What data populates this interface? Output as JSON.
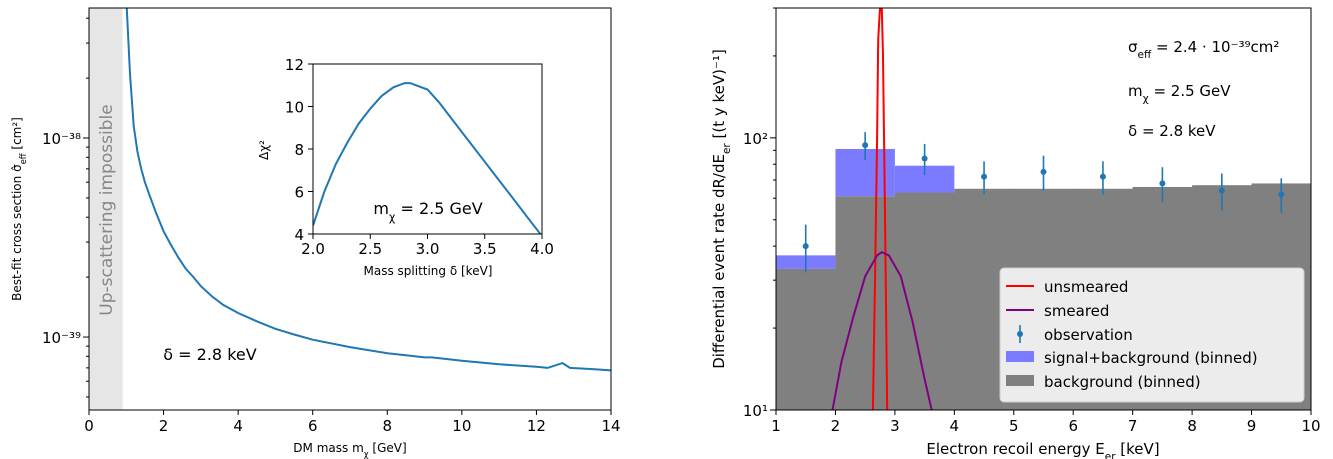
{
  "chart_data": [
    {
      "type": "line",
      "xlabel": "DM mass m_χ [GeV]",
      "ylabel": "Best-fit cross section σ̂_eff [cm²]",
      "xlim": [
        0,
        14
      ],
      "ylim": [
        4.3e-40,
        4.5e-38
      ],
      "yscale": "log",
      "xticks": [
        0,
        2,
        4,
        6,
        8,
        10,
        12,
        14
      ],
      "yticks": [
        {
          "v": 1e-38,
          "label": "10⁻³⁸"
        },
        {
          "v": 1e-39,
          "label": "10⁻³⁹"
        }
      ],
      "shaded_region": {
        "x": [
          0,
          0.9
        ],
        "color": "#e6e6e6",
        "label": "Up-scattering impossible"
      },
      "annotation": "δ = 2.8 keV",
      "series": [
        {
          "color": "#1f77b4",
          "x": [
            1.0,
            1.1,
            1.2,
            1.3,
            1.4,
            1.5,
            1.6,
            1.8,
            2.0,
            2.2,
            2.4,
            2.6,
            2.8,
            3.0,
            3.3,
            3.6,
            4.0,
            4.5,
            5.0,
            5.5,
            6.0,
            7.0,
            8.0,
            8.5,
            9.0,
            9.2,
            10.0,
            11.0,
            12.0,
            12.3,
            12.7,
            12.9,
            13.5,
            14.0
          ],
          "y": [
            5e-38,
            2.1e-38,
            1.15e-38,
            8.5e-39,
            7e-39,
            6e-39,
            5.3e-39,
            4.2e-39,
            3.4e-39,
            2.9e-39,
            2.5e-39,
            2.2e-39,
            2e-39,
            1.8e-39,
            1.6e-39,
            1.45e-39,
            1.32e-39,
            1.2e-39,
            1.1e-39,
            1.03e-39,
            9.7e-40,
            8.9e-40,
            8.3e-40,
            8.1e-40,
            7.9e-40,
            7.9e-40,
            7.6e-40,
            7.3e-40,
            7.1e-40,
            7e-40,
            7.4e-40,
            7e-40,
            6.9e-40,
            6.8e-40
          ]
        }
      ]
    },
    {
      "type": "line",
      "role": "inset",
      "xlabel": "Mass splitting δ [keV]",
      "ylabel": "Δχ²",
      "xlim": [
        2.0,
        4.0
      ],
      "ylim": [
        4,
        12
      ],
      "xticks": [
        "2.0",
        "2.5",
        "3.0",
        "3.5",
        "4.0"
      ],
      "yticks": [
        "4",
        "6",
        "8",
        "10",
        "12"
      ],
      "annotation": "m_χ = 2.5 GeV",
      "series": [
        {
          "color": "#1f77b4",
          "x": [
            2.0,
            2.1,
            2.2,
            2.3,
            2.4,
            2.5,
            2.6,
            2.7,
            2.8,
            2.85,
            2.9,
            3.0,
            3.1,
            3.2,
            3.3,
            3.4,
            3.5,
            3.6,
            3.7,
            3.8,
            3.9,
            4.0
          ],
          "y": [
            4.4,
            6.0,
            7.3,
            8.3,
            9.2,
            9.9,
            10.5,
            10.9,
            11.1,
            11.1,
            11.0,
            10.8,
            10.2,
            9.5,
            8.8,
            8.1,
            7.4,
            6.7,
            6.0,
            5.3,
            4.6,
            3.9
          ]
        }
      ]
    },
    {
      "type": "bar",
      "xlabel": "Electron recoil energy E_er [keV]",
      "ylabel": "Differential event rate dR/dE_er [(t y keV)⁻¹]",
      "xlim": [
        1,
        10
      ],
      "ylim": [
        10,
        300
      ],
      "yscale": "log",
      "xticks": [
        1,
        2,
        3,
        4,
        5,
        6,
        7,
        8,
        9,
        10
      ],
      "yticks": [
        {
          "v": 10,
          "label": "10¹"
        },
        {
          "v": 100,
          "label": "10²"
        }
      ],
      "annotations": [
        "σ_eff = 2.4 · 10⁻³⁹cm²",
        "m_χ = 2.5 GeV",
        "δ = 2.8 keV"
      ],
      "bin_edges": [
        1,
        2,
        3,
        4,
        5,
        6,
        7,
        8,
        9,
        10
      ],
      "series": [
        {
          "name": "unsmeared",
          "kind": "line",
          "color": "#ff0000",
          "x": [
            2.63,
            2.67,
            2.7,
            2.72,
            2.75,
            2.78,
            2.8,
            2.83,
            2.87
          ],
          "y": [
            10,
            35,
            100,
            230,
            300,
            300,
            200,
            60,
            10
          ]
        },
        {
          "name": "smeared",
          "kind": "line",
          "color": "#800080",
          "x": [
            1.95,
            2.1,
            2.3,
            2.5,
            2.7,
            2.78,
            2.9,
            3.1,
            3.3,
            3.5,
            3.62
          ],
          "y": [
            10,
            15,
            22,
            31,
            37,
            38,
            37,
            31,
            21,
            13,
            10
          ]
        },
        {
          "name": "observation",
          "kind": "errorbar",
          "color": "#1f77b4",
          "x": [
            1.5,
            2.5,
            3.5,
            4.5,
            5.5,
            6.5,
            7.5,
            8.5,
            9.5
          ],
          "y": [
            40,
            94,
            84,
            72,
            75,
            72,
            68,
            64,
            62
          ],
          "yerr": [
            8,
            11,
            11,
            10,
            11,
            10,
            10,
            10,
            9
          ]
        },
        {
          "name": "signal+background (binned)",
          "kind": "hist",
          "color": "#7b7bff",
          "values": [
            37,
            91,
            79,
            65,
            65,
            65,
            66,
            67,
            68
          ]
        },
        {
          "name": "background (binned)",
          "kind": "hist",
          "color": "#808080",
          "values": [
            33,
            61,
            63,
            65,
            65,
            65,
            66,
            67,
            68
          ]
        }
      ]
    }
  ]
}
